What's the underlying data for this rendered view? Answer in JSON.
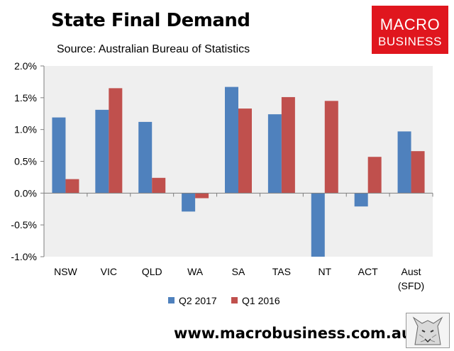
{
  "header": {
    "title": "State Final Demand",
    "subtitle": "Source: Australian Bureau of Statistics"
  },
  "logo": {
    "line1": "MACRO",
    "line2": "BUSINESS"
  },
  "footer": {
    "url": "www.macrobusiness.com.au",
    "mascot_icon": "wolf-icon"
  },
  "colors": {
    "q2_2017": "#4f81bd",
    "q1_2016": "#c0504d",
    "plot_background": "#efefef",
    "logo_background": "#e0161e"
  },
  "chart_data": {
    "type": "bar",
    "categories": [
      "NSW",
      "VIC",
      "QLD",
      "WA",
      "SA",
      "TAS",
      "NT",
      "ACT",
      "Aust\n(SFD)"
    ],
    "series": [
      {
        "name": "Q2 2017",
        "values": [
          1.19,
          1.31,
          1.12,
          -0.29,
          1.67,
          1.24,
          -1.0,
          -0.21,
          0.97
        ]
      },
      {
        "name": "Q1 2016",
        "values": [
          0.22,
          1.65,
          0.24,
          -0.08,
          1.33,
          1.51,
          1.45,
          0.57,
          0.66
        ]
      }
    ],
    "ylim": [
      -1.0,
      2.0
    ],
    "yticks": [
      "2.0%",
      "1.5%",
      "1.0%",
      "0.5%",
      "0.0%",
      "-0.5%",
      "-1.0%"
    ],
    "ytick_values": [
      2.0,
      1.5,
      1.0,
      0.5,
      0.0,
      -0.5,
      -1.0
    ],
    "grid": false,
    "legend_position": "bottom"
  }
}
